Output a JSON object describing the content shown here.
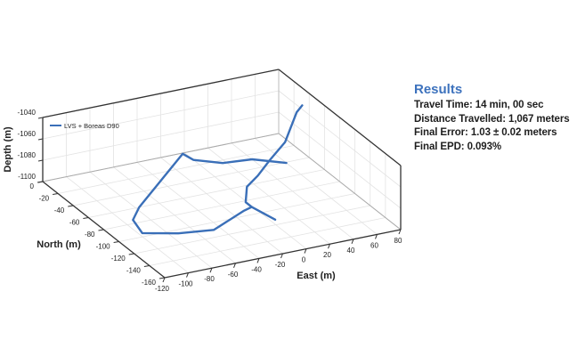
{
  "chart_data": {
    "type": "line",
    "projection": "3d",
    "title": "",
    "xlabel": "East (m)",
    "ylabel": "North (m)",
    "zlabel": "Depth (m)",
    "xlim": [
      -120,
      80
    ],
    "ylim": [
      -160,
      0
    ],
    "zlim": [
      -1100,
      -1040
    ],
    "xticks": [
      "-120",
      "-100",
      "-80",
      "-60",
      "-40",
      "-20",
      "0",
      "20",
      "40",
      "60",
      "80"
    ],
    "yticks": [
      "0",
      "-20",
      "-40",
      "-60",
      "-80",
      "-100",
      "-120",
      "-140",
      "-160"
    ],
    "zticks": [
      "-1040",
      "-1060",
      "-1080",
      "-1100"
    ],
    "grid": true,
    "legend_position": "top-left",
    "series": [
      {
        "name": "LVS + Boreas D90",
        "color": "#3a6fb8",
        "segments": [
          {
            "east": [
              60,
              40,
              17,
              0,
              -2,
              -77,
              -92,
              -97,
              -73,
              -46,
              -10,
              -1,
              -1,
              13,
              30,
              51,
              77,
              92,
              98
            ],
            "north": [
              -41,
              -27,
              -24,
              -12,
              -1,
              -60,
              -75,
              -95,
              -105,
              -110,
              -93,
              -90,
              -82,
              -62,
              -50,
              -33,
              -13,
              -5,
              -3
            ],
            "depth": [
              -1100,
              -1100,
              -1100,
              -1100,
              -1100,
              -1100,
              -1100,
              -1100,
              -1100,
              -1100,
              -1100,
              -1100,
              -1100,
              -1100,
              -1100,
              -1100,
              -1100,
              -1080,
              -1076
            ]
          },
          {
            "east": [
              -1,
              4
            ],
            "north": [
              -90,
              -113
            ],
            "depth": [
              -1100,
              -1100
            ]
          }
        ]
      }
    ]
  },
  "results": {
    "title": "Results",
    "lines": [
      "Travel Time: 14 min, 00 sec",
      "Distance Travelled: 1,067 meters",
      "Final Error: 1.03 ± 0.02 meters",
      "Final EPD: 0.093%"
    ]
  }
}
